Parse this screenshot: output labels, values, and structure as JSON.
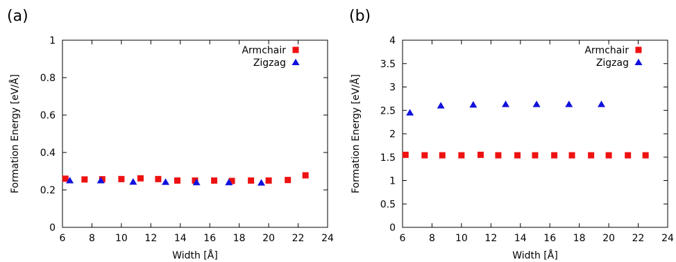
{
  "colors": {
    "armchair": "#ee1111",
    "zigzag": "#1111dd",
    "axis": "#000000"
  },
  "chart_data": [
    {
      "type": "scatter",
      "panel_label": "(a)",
      "xlabel": "Width [Å]",
      "ylabel": "Formation Energy [eV/Å]",
      "xlim": [
        6,
        24
      ],
      "ylim": [
        0,
        1
      ],
      "xticks": [
        6,
        8,
        10,
        12,
        14,
        16,
        18,
        20,
        22,
        24
      ],
      "xtick_labels": [
        "6",
        "8",
        "10",
        "12",
        "14",
        "16",
        "18",
        "20",
        "22",
        "24"
      ],
      "yticks": [
        0,
        0.2,
        0.4,
        0.6,
        0.8,
        1
      ],
      "ytick_labels": [
        "0",
        "0.2",
        "0.4",
        "0.6",
        "0.8",
        "1"
      ],
      "grid": false,
      "legend_position": "top-right",
      "series": [
        {
          "name": "Armchair",
          "marker": "square",
          "color_key": "armchair",
          "x": [
            6.2,
            7.5,
            8.7,
            10.0,
            11.3,
            12.5,
            13.8,
            15.0,
            16.3,
            17.5,
            18.8,
            20.0,
            21.3,
            22.5
          ],
          "y": [
            0.26,
            0.256,
            0.257,
            0.258,
            0.262,
            0.258,
            0.25,
            0.25,
            0.25,
            0.248,
            0.25,
            0.25,
            0.253,
            0.278
          ]
        },
        {
          "name": "Zigzag",
          "marker": "triangle",
          "color_key": "zigzag",
          "x": [
            6.5,
            8.6,
            10.8,
            13.0,
            15.1,
            17.3,
            19.5
          ],
          "y": [
            0.25,
            0.25,
            0.243,
            0.242,
            0.24,
            0.24,
            0.238
          ]
        }
      ]
    },
    {
      "type": "scatter",
      "panel_label": "(b)",
      "xlabel": "Width [Å]",
      "ylabel": "Formation Energy [eV/Å]",
      "xlim": [
        6,
        24
      ],
      "ylim": [
        0,
        4
      ],
      "xticks": [
        6,
        8,
        10,
        12,
        14,
        16,
        18,
        20,
        22,
        24
      ],
      "xtick_labels": [
        "6",
        "8",
        "10",
        "12",
        "14",
        "16",
        "18",
        "20",
        "22",
        "24"
      ],
      "yticks": [
        0,
        0.5,
        1,
        1.5,
        2,
        2.5,
        3,
        3.5,
        4
      ],
      "ytick_labels": [
        "0",
        "0.5",
        "1",
        "1.5",
        "2",
        "2.5",
        "3",
        "3.5",
        "4"
      ],
      "grid": false,
      "legend_position": "top-right",
      "series": [
        {
          "name": "Armchair",
          "marker": "square",
          "color_key": "armchair",
          "x": [
            6.2,
            7.5,
            8.7,
            10.0,
            11.3,
            12.5,
            13.8,
            15.0,
            16.3,
            17.5,
            18.8,
            20.0,
            21.3,
            22.5
          ],
          "y": [
            1.55,
            1.54,
            1.54,
            1.54,
            1.55,
            1.54,
            1.54,
            1.54,
            1.54,
            1.54,
            1.54,
            1.54,
            1.54,
            1.54
          ]
        },
        {
          "name": "Zigzag",
          "marker": "triangle",
          "color_key": "zigzag",
          "x": [
            6.5,
            8.6,
            10.8,
            13.0,
            15.1,
            17.3,
            19.5
          ],
          "y": [
            2.45,
            2.6,
            2.62,
            2.63,
            2.63,
            2.63,
            2.63
          ]
        }
      ]
    }
  ]
}
